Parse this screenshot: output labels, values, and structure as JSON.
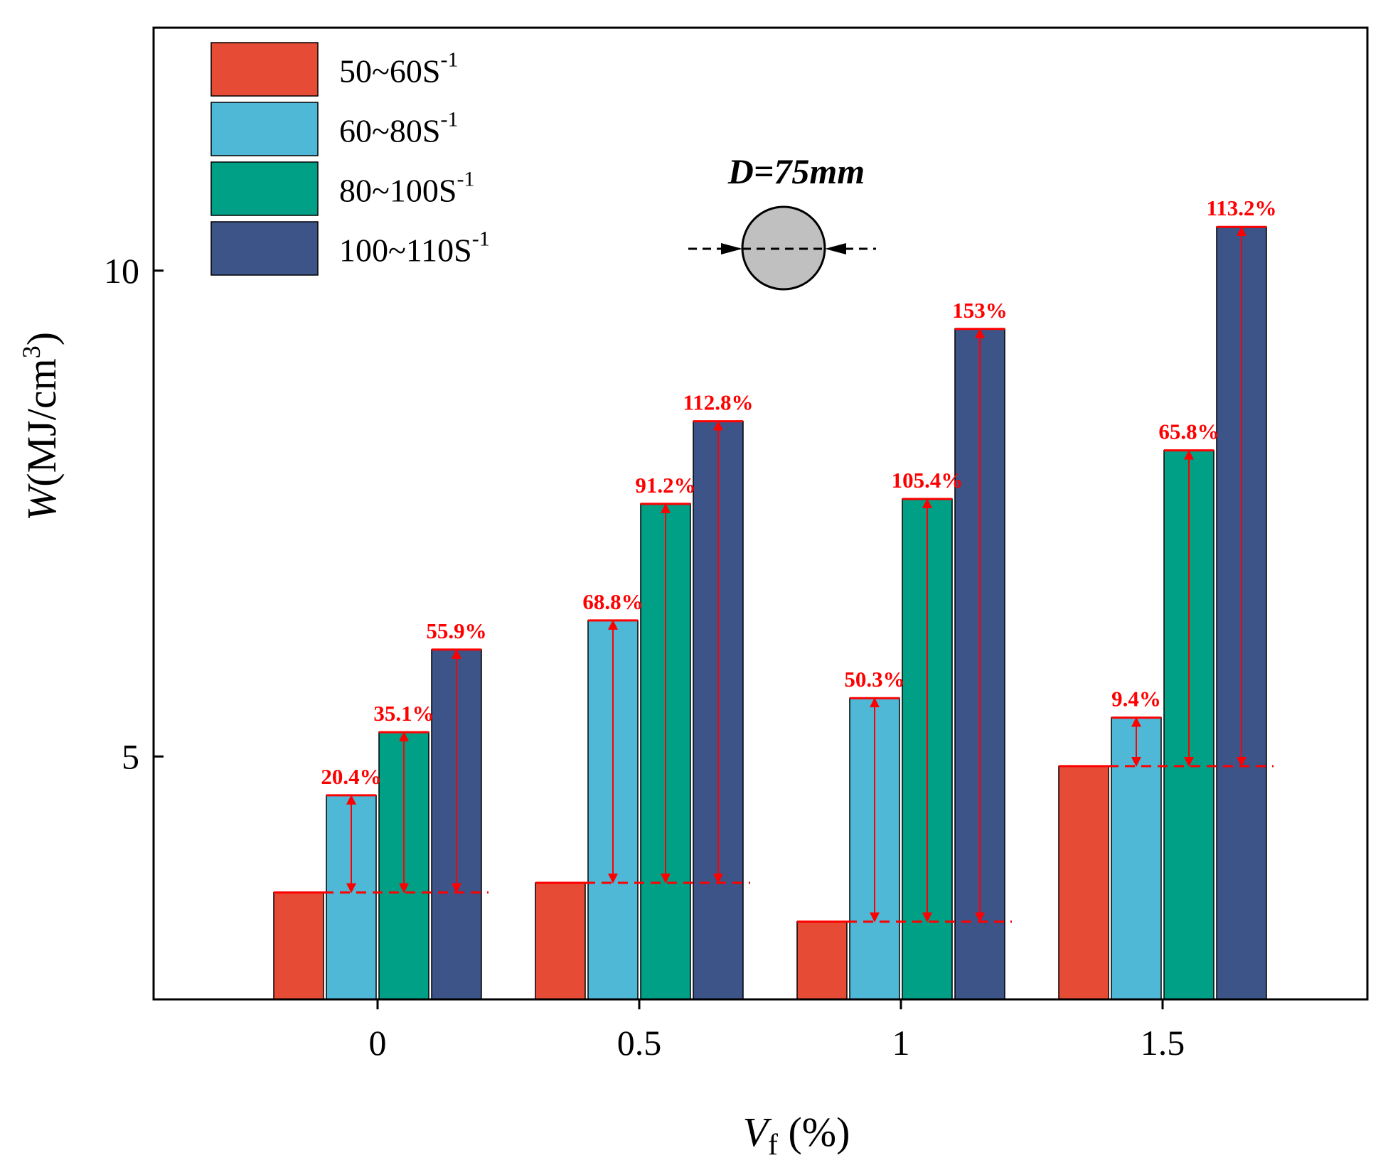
{
  "colors": {
    "series": [
      "#e64b35",
      "#4eb8d6",
      "#00a087",
      "#3c5488"
    ],
    "annotation": "#ff0000",
    "specimen_fill": "#c0c0c0"
  },
  "chart_data": {
    "type": "bar",
    "categories": [
      "0",
      "0.5",
      "1",
      "1.5"
    ],
    "series": [
      {
        "name": "50~60S",
        "sup": "-1",
        "values": [
          3.6,
          3.7,
          3.3,
          4.9
        ]
      },
      {
        "name": "60~80S",
        "sup": "-1",
        "values": [
          4.6,
          6.4,
          5.6,
          5.4
        ]
      },
      {
        "name": "80~100S",
        "sup": "-1",
        "values": [
          5.25,
          7.6,
          7.65,
          8.15
        ]
      },
      {
        "name": "100~110S",
        "sup": "-1",
        "values": [
          6.1,
          8.45,
          9.4,
          10.45
        ]
      }
    ],
    "increase_labels": [
      [
        "20.4%",
        "35.1%",
        "55.9%"
      ],
      [
        "68.8%",
        "91.2%",
        "112.8%"
      ],
      [
        "50.3%",
        "105.4%",
        "153%"
      ],
      [
        "9.4%",
        "65.8%",
        "113.2%"
      ]
    ],
    "ylim": [
      2.5,
      12.5
    ],
    "yticks": [
      5,
      10
    ],
    "xlabel": {
      "main": "V",
      "sub": "f",
      "rest": " (%)"
    },
    "ylabel": {
      "main": "W",
      "rest": "(MJ/cm",
      "sup": "3",
      "close": ")"
    },
    "legend_position": "top-left",
    "grid": false,
    "annotation": {
      "label": "D=75mm"
    }
  }
}
